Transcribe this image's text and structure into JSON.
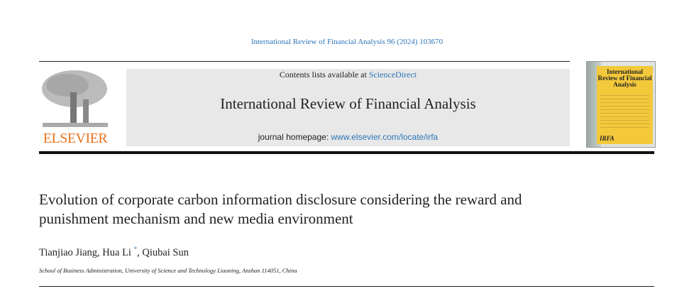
{
  "citation": "International Review of Financial Analysis 96 (2024) 103670",
  "header": {
    "contents_prefix": "Contents lists available at ",
    "contents_link": "ScienceDirect",
    "journal_title": "International Review of Financial Analysis",
    "homepage_prefix": "journal homepage: ",
    "homepage_link": "www.elsevier.com/locate/irfa",
    "publisher_logo": "ELSEVIER",
    "cover_title": "International Review of Financial Analysis",
    "cover_mark": "IRFA"
  },
  "colors": {
    "link": "#2a75b8",
    "elsevier_orange": "#e9711c",
    "cover_yellow": "#f3c93b",
    "header_gray": "#e8e8e8"
  },
  "article": {
    "title": "Evolution of corporate carbon information disclosure considering the reward and punishment mechanism and new media environment",
    "authors": [
      {
        "name": "Tianjiao Jiang",
        "mark": ""
      },
      {
        "name": "Hua Li",
        "mark": "*"
      },
      {
        "name": "Qiubai Sun",
        "mark": ""
      }
    ],
    "affiliation": "School of Business Administration, University of Science and Technology Liaoning, Anshan 114051, China"
  }
}
